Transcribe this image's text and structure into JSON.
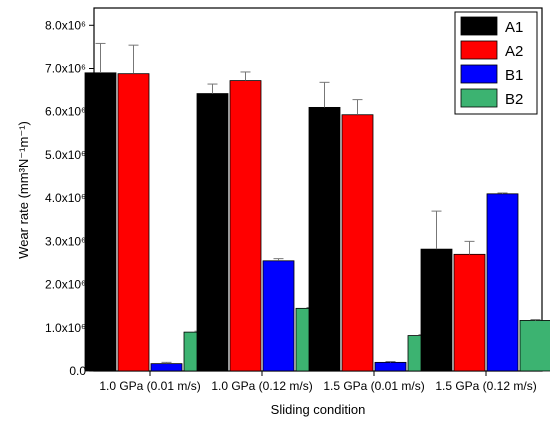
{
  "chart_data": {
    "type": "bar",
    "title": "",
    "xlabel": "Sliding condition",
    "ylabel": "Wear rate (mm³N⁻¹m⁻¹)",
    "ylim": [
      0,
      8.4
    ],
    "ytick_values": [
      0,
      1,
      2,
      3,
      4,
      5,
      6,
      7,
      8
    ],
    "ytick_labels": [
      "0.0",
      "1.0x10⁶",
      "2.0x10⁶",
      "3.0x10⁶",
      "4.0x10⁶",
      "5.0x10⁶",
      "6.0x10⁶",
      "7.0x10⁶",
      "8.0x10⁶"
    ],
    "categories": [
      "1.0 GPa (0.01 m/s)",
      "1.0 GPa (0.12 m/s)",
      "1.5 GPa (0.01 m/s)",
      "1.5 GPa (0.12 m/s)"
    ],
    "legend_position": "top-right",
    "grid": false,
    "series": [
      {
        "name": "A1",
        "color": "#000000",
        "values": [
          6.9,
          6.42,
          6.1,
          2.82
        ],
        "errors": [
          0.68,
          0.22,
          0.58,
          0.88
        ]
      },
      {
        "name": "A2",
        "color": "#ff0000",
        "values": [
          6.88,
          6.72,
          5.93,
          2.7
        ],
        "errors": [
          0.66,
          0.2,
          0.35,
          0.3
        ]
      },
      {
        "name": "B1",
        "color": "#0000ff",
        "values": [
          0.17,
          2.55,
          0.2,
          4.1
        ],
        "errors": [
          0.03,
          0.05,
          0.02,
          0.02
        ]
      },
      {
        "name": "B2",
        "color": "#3cb371",
        "values": [
          0.9,
          1.45,
          0.82,
          1.17
        ],
        "errors": [
          0.02,
          0.02,
          0.02,
          0.02
        ]
      }
    ]
  }
}
